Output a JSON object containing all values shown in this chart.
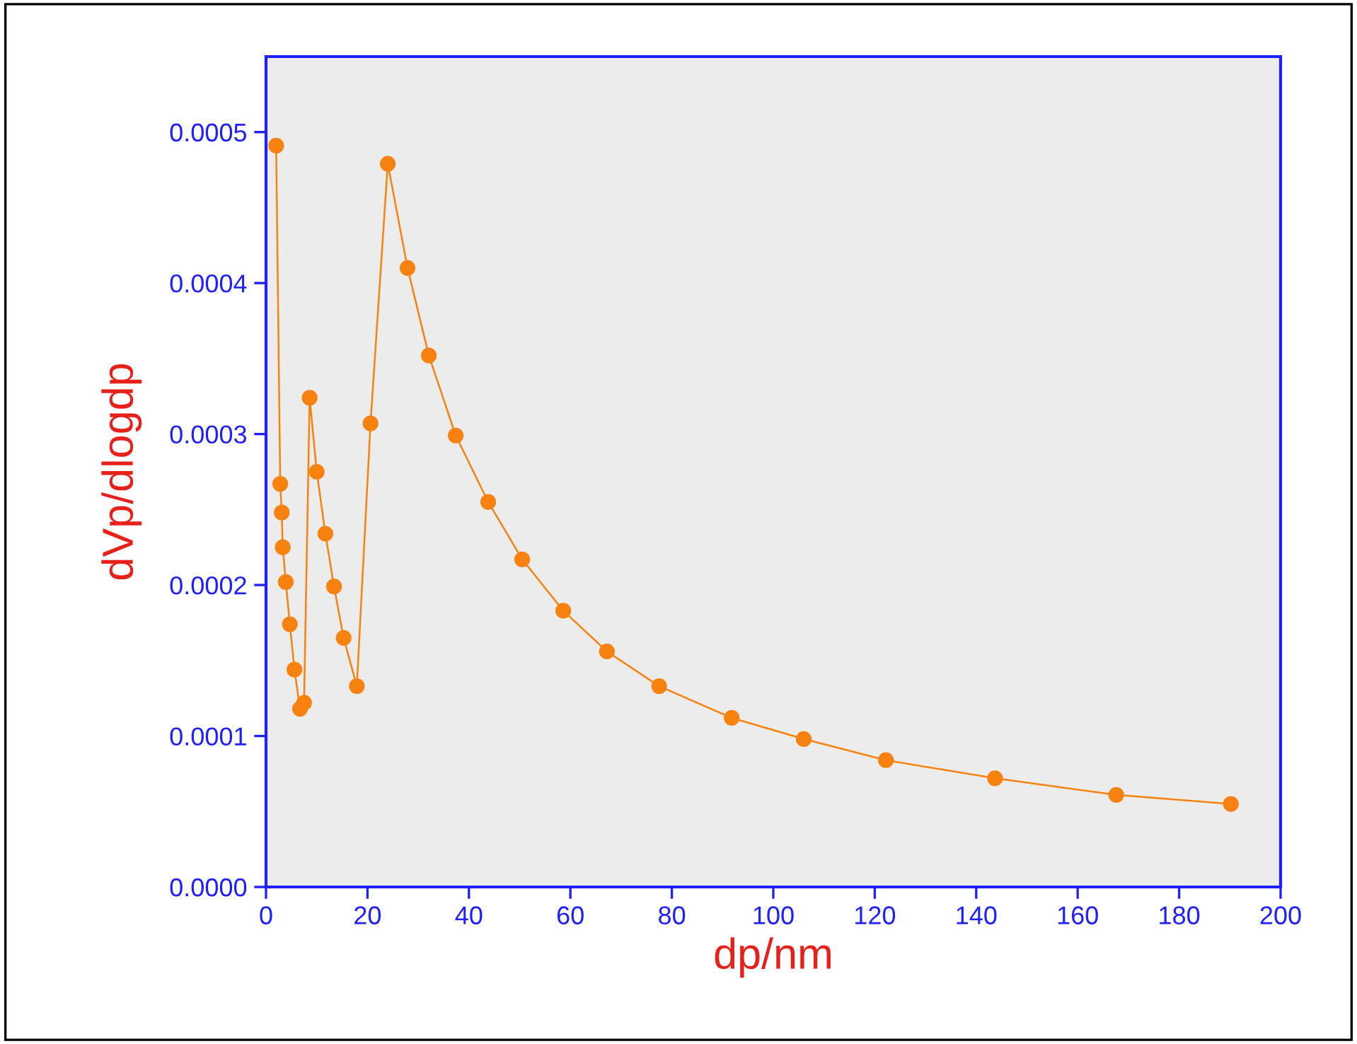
{
  "chart_data": {
    "type": "line",
    "xlabel": "dp/nm",
    "ylabel": "dVp/dlogdp",
    "x": [
      2.0,
      2.8,
      3.1,
      3.3,
      3.9,
      4.7,
      5.6,
      6.7,
      7.5,
      8.6,
      10.0,
      11.7,
      13.4,
      15.3,
      17.9,
      20.6,
      24.0,
      27.9,
      32.1,
      37.4,
      43.8,
      50.5,
      58.6,
      67.2,
      77.5,
      91.8,
      106.0,
      122.2,
      143.7,
      167.6,
      190.2
    ],
    "series": [
      {
        "color": "#f7820f",
        "values": [
          0.000491,
          0.000267,
          0.000248,
          0.000225,
          0.000202,
          0.000174,
          0.000144,
          0.000118,
          0.000122,
          0.000324,
          0.000275,
          0.000234,
          0.000199,
          0.000165,
          0.000133,
          0.000307,
          0.000479,
          0.00041,
          0.000352,
          0.000299,
          0.000255,
          0.000217,
          0.000183,
          0.000156,
          0.000133,
          0.000112,
          9.8e-05,
          8.4e-05,
          7.2e-05,
          6.1e-05,
          5.5e-05
        ]
      }
    ],
    "marker": "circle",
    "line_style": "solid",
    "grid": false,
    "legend": false,
    "xlim": [
      0,
      200
    ],
    "xticks": [
      0,
      20,
      40,
      60,
      80,
      100,
      120,
      140,
      160,
      180,
      200
    ],
    "ylim": [
      0,
      0.00055
    ],
    "yticks": [
      {
        "value": 0,
        "label": "0.0000"
      },
      {
        "value": 0.0001,
        "label": "0.0001"
      },
      {
        "value": 0.0002,
        "label": "0.0002"
      },
      {
        "value": 0.0003,
        "label": "0.0003"
      },
      {
        "value": 0.0004,
        "label": "0.0004"
      },
      {
        "value": 0.0005,
        "label": "0.0005"
      }
    ]
  }
}
